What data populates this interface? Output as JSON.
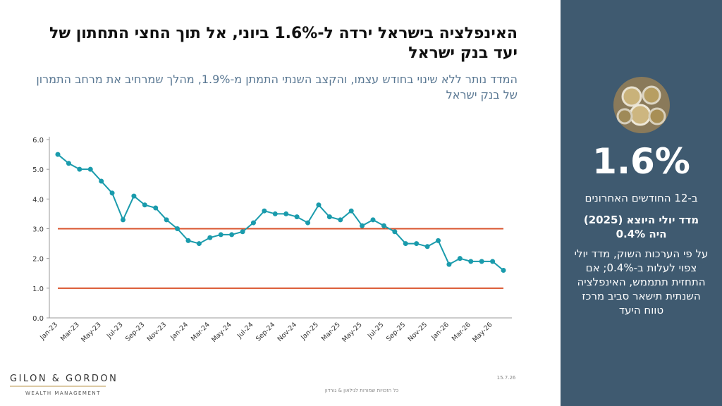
{
  "chart_data": {
    "type": "line",
    "title": "האינפלציה בישראל ירדה ל-1.6% ביוני, אל תוך החצי התחתון של יעד בנק ישראל",
    "subtitle": "המדד נותר ללא שינוי בחודש עצמו, והקצב השנתי התמתן מ-1.9%, מהלך שמרחיב את מרחב התמרון של בנק ישראל",
    "categories": [
      "Jan-23",
      null,
      "Mar-23",
      null,
      "May-23",
      null,
      "Jul-23",
      null,
      "Sep-23",
      null,
      "Nov-23",
      null,
      "Jan-24",
      null,
      "Mar-24",
      null,
      "May-24",
      null,
      "Jul-24",
      null,
      "Sep-24",
      null,
      "Nov-24",
      null,
      "Jan-25",
      null,
      "Mar-25",
      null,
      "May-25",
      null,
      "Jul-25",
      null,
      "Sep-25",
      null,
      "Nov-25",
      null,
      "Jan-26",
      null,
      "Mar-26",
      null,
      "May-26",
      null
    ],
    "values": [
      5.5,
      5.2,
      5.0,
      5.0,
      4.6,
      4.2,
      3.3,
      4.1,
      3.8,
      3.7,
      3.3,
      3.0,
      2.6,
      2.5,
      2.7,
      2.8,
      2.8,
      2.9,
      3.2,
      3.6,
      3.5,
      3.5,
      3.4,
      3.2,
      3.8,
      3.4,
      3.3,
      3.6,
      3.1,
      3.3,
      3.1,
      2.9,
      2.5,
      2.5,
      2.4,
      2.6,
      1.8,
      2.0,
      1.9,
      1.9,
      1.9,
      1.6
    ],
    "color": "#1a9bac",
    "reference_lines": [
      3,
      1
    ],
    "reference_color": "#d9532c",
    "ylim": [
      0,
      6
    ],
    "yticks": [
      {
        "value": 0,
        "label": "0.0"
      },
      {
        "value": 1,
        "label": "1.0"
      },
      {
        "value": 2,
        "label": "2.0"
      },
      {
        "value": 3,
        "label": "3.0"
      },
      {
        "value": 4,
        "label": "4.0"
      },
      {
        "value": 5,
        "label": "5.0"
      },
      {
        "value": 6,
        "label": "6.0"
      }
    ]
  },
  "panel": {
    "headline": "1.6%",
    "subhead": "ב-12 החודשים האחרונים",
    "note": "מדד יולי היוצא (2025) היה 0.4%",
    "body": "על פי הערכות השוק, מדד יולי צפוי לעלות ב-0.4%; אם התחזית תתממש, האינפלציה השנתית תישאר סביב מרכז טווח היעד"
  },
  "footer": {
    "rights": "כל הזכויות שמורות לגילאון & גורדון",
    "date": "15.7.26"
  },
  "logo": {
    "name": "GILON & GORDON",
    "tagline": "WEALTH MANAGEMENT"
  }
}
